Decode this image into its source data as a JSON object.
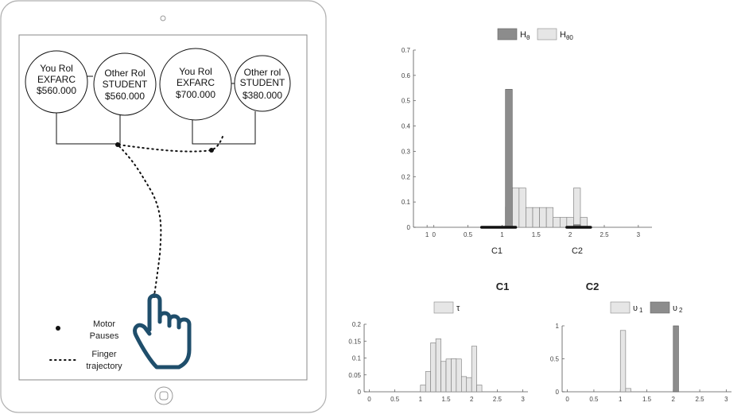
{
  "tablet": {
    "options": [
      {
        "role": "You Rol",
        "group": "EXFARC",
        "amount": "$560.000"
      },
      {
        "role": "Other Rol",
        "group": "STUDENT",
        "amount": "$560.000"
      },
      {
        "role": "You Rol",
        "group": "EXFARC",
        "amount": "$700.000"
      },
      {
        "role": "Other rol",
        "group": "STUDENT",
        "amount": "$380.000"
      }
    ],
    "legend": {
      "pause_label_line1": "Motor",
      "pause_label_line2": "Pauses",
      "trajectory_label_line1": "Finger",
      "trajectory_label_line2": "trajectory"
    },
    "icons": [
      "hand-pointer-icon",
      "home-button-icon",
      "camera-icon"
    ]
  },
  "colors": {
    "dark_bar": "#8c8c8c",
    "light_bar": "#e6e6e6",
    "hand_outline": "#1f4e6b",
    "tablet_border": "#b0b0b0"
  },
  "chart_data": [
    {
      "type": "bar",
      "legend": [
        "H",
        "H"
      ],
      "legend_subscripts": [
        "θ",
        "θ0"
      ],
      "x_ticks": [
        "1",
        "0",
        "0.5",
        "1",
        "1.5",
        "2",
        "2.5",
        "3"
      ],
      "y_ticks": [
        "0",
        "0.1",
        "0.2",
        "0.3",
        "0.4",
        "0.5",
        "0.6",
        "0.7"
      ],
      "x_captions": [
        "C1",
        "C2"
      ],
      "xlim": [
        -0.3,
        3.2
      ],
      "ylim": [
        0,
        0.7
      ],
      "series": [
        {
          "color": "#8c8c8c",
          "bins": [
            {
              "x0": 1.05,
              "x1": 1.15,
              "y": 0.545
            },
            {
              "x0": 2.05,
              "x1": 2.15,
              "y": 0.01
            }
          ]
        },
        {
          "color": "#e6e6e6",
          "bins": [
            {
              "x0": 1.05,
              "x1": 1.15,
              "y": 0.08
            },
            {
              "x0": 1.15,
              "x1": 1.25,
              "y": 0.155
            },
            {
              "x0": 1.25,
              "x1": 1.35,
              "y": 0.155
            },
            {
              "x0": 1.35,
              "x1": 1.45,
              "y": 0.078
            },
            {
              "x0": 1.45,
              "x1": 1.55,
              "y": 0.078
            },
            {
              "x0": 1.55,
              "x1": 1.65,
              "y": 0.078
            },
            {
              "x0": 1.65,
              "x1": 1.75,
              "y": 0.078
            },
            {
              "x0": 1.75,
              "x1": 1.85,
              "y": 0.039
            },
            {
              "x0": 1.85,
              "x1": 1.95,
              "y": 0.039
            },
            {
              "x0": 1.95,
              "x1": 2.05,
              "y": 0.039
            },
            {
              "x0": 2.05,
              "x1": 2.15,
              "y": 0.155
            },
            {
              "x0": 2.15,
              "x1": 2.25,
              "y": 0.039
            }
          ]
        }
      ],
      "rugs": [
        [
          0.7,
          1.2
        ],
        [
          1.95,
          2.3
        ]
      ]
    },
    {
      "type": "bar",
      "title": "C1",
      "legend": [
        "τ"
      ],
      "x_ticks": [
        "0",
        "0.5",
        "1",
        "1.5",
        "2",
        "2.5",
        "3"
      ],
      "y_ticks": [
        "0",
        "0.05",
        "0.1",
        "0.15",
        "0.2"
      ],
      "xlim": [
        -0.1,
        3.1
      ],
      "ylim": [
        0,
        0.2
      ],
      "series": [
        {
          "color": "#e6e6e6",
          "bins": [
            {
              "x0": 1.0,
              "x1": 1.1,
              "y": 0.02
            },
            {
              "x0": 1.1,
              "x1": 1.2,
              "y": 0.06
            },
            {
              "x0": 1.2,
              "x1": 1.3,
              "y": 0.145
            },
            {
              "x0": 1.3,
              "x1": 1.4,
              "y": 0.157
            },
            {
              "x0": 1.4,
              "x1": 1.5,
              "y": 0.09
            },
            {
              "x0": 1.5,
              "x1": 1.6,
              "y": 0.097
            },
            {
              "x0": 1.6,
              "x1": 1.7,
              "y": 0.098
            },
            {
              "x0": 1.7,
              "x1": 1.8,
              "y": 0.097
            },
            {
              "x0": 1.8,
              "x1": 1.9,
              "y": 0.045
            },
            {
              "x0": 1.9,
              "x1": 2.0,
              "y": 0.042
            },
            {
              "x0": 2.0,
              "x1": 2.1,
              "y": 0.135
            },
            {
              "x0": 2.1,
              "x1": 2.2,
              "y": 0.02
            }
          ]
        }
      ]
    },
    {
      "type": "bar",
      "title": "C2",
      "legend": [
        "υ",
        "υ"
      ],
      "legend_subscripts": [
        "1",
        "2"
      ],
      "x_ticks": [
        "0",
        "0.5",
        "1",
        "1.5",
        "2",
        "2.5",
        "3"
      ],
      "y_ticks": [
        "0",
        "0.5",
        "1"
      ],
      "xlim": [
        -0.1,
        3.1
      ],
      "ylim": [
        0,
        1
      ],
      "series": [
        {
          "color": "#e6e6e6",
          "bins": [
            {
              "x0": 1.0,
              "x1": 1.1,
              "y": 0.93
            },
            {
              "x0": 1.1,
              "x1": 1.2,
              "y": 0.05
            }
          ]
        },
        {
          "color": "#8c8c8c",
          "bins": [
            {
              "x0": 2.0,
              "x1": 2.1,
              "y": 1.0
            }
          ]
        }
      ]
    }
  ]
}
